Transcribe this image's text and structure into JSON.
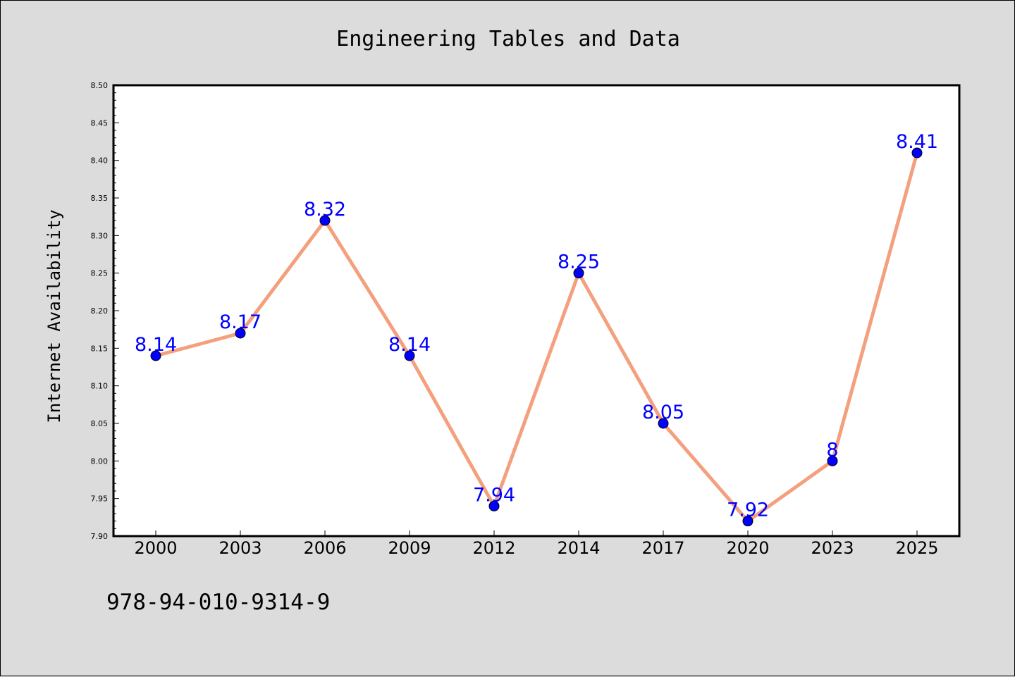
{
  "chart_data": {
    "type": "line",
    "title": "Engineering Tables and Data",
    "xlabel": "",
    "ylabel": "Internet Availability",
    "categories": [
      "2000",
      "2003",
      "2006",
      "2009",
      "2012",
      "2014",
      "2017",
      "2020",
      "2023",
      "2025"
    ],
    "series": [
      {
        "values": [
          8.14,
          8.17,
          8.32,
          8.14,
          7.94,
          8.25,
          8.05,
          7.92,
          8.0,
          8.41
        ],
        "data_labels": [
          "8.14",
          "8.17",
          "8.32",
          "8.14",
          "7.94",
          "8.25",
          "8.05",
          "7.92",
          "8",
          "8.41"
        ]
      }
    ],
    "ylim": [
      7.9,
      8.5
    ],
    "yticks": [
      "7.90",
      "7.95",
      "8.00",
      "8.05",
      "8.10",
      "8.15",
      "8.20",
      "8.25",
      "8.30",
      "8.35",
      "8.40",
      "8.45",
      "8.50"
    ],
    "grid": false,
    "legend": "none",
    "line_color": "#f4a07e",
    "marker_color": "#0000ff",
    "label_color": "#0000ff"
  },
  "footer": {
    "isbn": "978-94-010-9314-9"
  }
}
